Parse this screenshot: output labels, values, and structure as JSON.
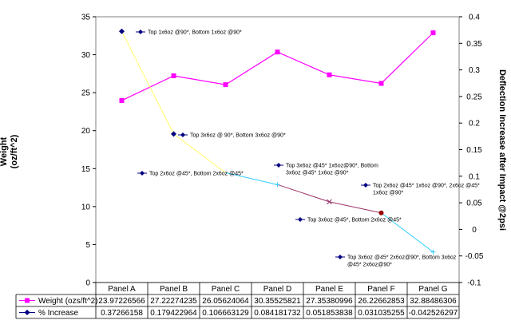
{
  "chart_data": {
    "type": "line",
    "categories": [
      "Panel A",
      "Panel B",
      "Panel C",
      "Panel D",
      "Panel E",
      "Panel F",
      "Panel G"
    ],
    "y_left": {
      "label": "Weight\n(oz/ft^2)",
      "lim": [
        0,
        35
      ],
      "ticks": [
        "0",
        "5",
        "10",
        "15",
        "20",
        "25",
        "30",
        "35"
      ]
    },
    "y_right": {
      "label": "Deflection Increase after Impact @2psi",
      "lim": [
        -0.1,
        0.4
      ],
      "ticks": [
        "-0.1",
        "-0.05",
        "0",
        "0.05",
        "0.1",
        "0.15",
        "0.2",
        "0.25",
        "0.3",
        "0.35",
        "0.4"
      ]
    },
    "grid": false,
    "series": [
      {
        "name": "Weight (ozs/ft^2)",
        "axis": "left",
        "color": "#ff00ff",
        "marker": "square",
        "values": [
          23.97226566,
          27.22274235,
          26.05624064,
          30.35525821,
          27.35380996,
          26.22662853,
          32.88486306
        ],
        "table_values": [
          "23.97226566",
          "27.22274235",
          "26.05624064",
          "30.35525821",
          "27.35380996",
          "26.22662853",
          "32.88486306"
        ]
      },
      {
        "name": "% Increase",
        "axis": "right",
        "color": "#000080",
        "marker": "diamond",
        "values": [
          0.37266158,
          0.179422964,
          0.106663129,
          0.084181732,
          0.051853838,
          0.031035255,
          -0.042526297
        ],
        "table_values": [
          "0.37266158",
          "0.179422964",
          "0.106663129",
          "0.084181732",
          "0.051853838",
          "0.031035255",
          "-0.042526297"
        ]
      }
    ],
    "segment_colors": [
      "#ffff66",
      "#ffff66",
      "#33ccff",
      "#993366",
      "#993366",
      "#33ccff"
    ],
    "annotations": [
      {
        "lines": [
          "Top 1x6oz @90*, Bottom 1x6oz @90*"
        ]
      },
      {
        "lines": [
          "Top 3x6oz @ 90*, Bottom 3x6oz @90*"
        ]
      },
      {
        "lines": [
          "Top 2x6oz @45*, Bottom 2x6oz @45*"
        ]
      },
      {
        "lines": [
          "Top 3x6oz @45* 1x6oz@90*, Bottom",
          "3x6oz @45* 1x6oz @90*"
        ]
      },
      {
        "lines": [
          "Top 3x6oz @45*, Bottom 2x6oz @45*"
        ]
      },
      {
        "lines": [
          "Top 2x6oz @45* 1x6oz @90*, 2x6oz @45*",
          "1x6oz @90*"
        ]
      },
      {
        "lines": [
          "Top 3x6oz @45* 2x6oz@90*, Bottom 3x6oz",
          "@45* 2x6oz@90*"
        ]
      }
    ]
  }
}
